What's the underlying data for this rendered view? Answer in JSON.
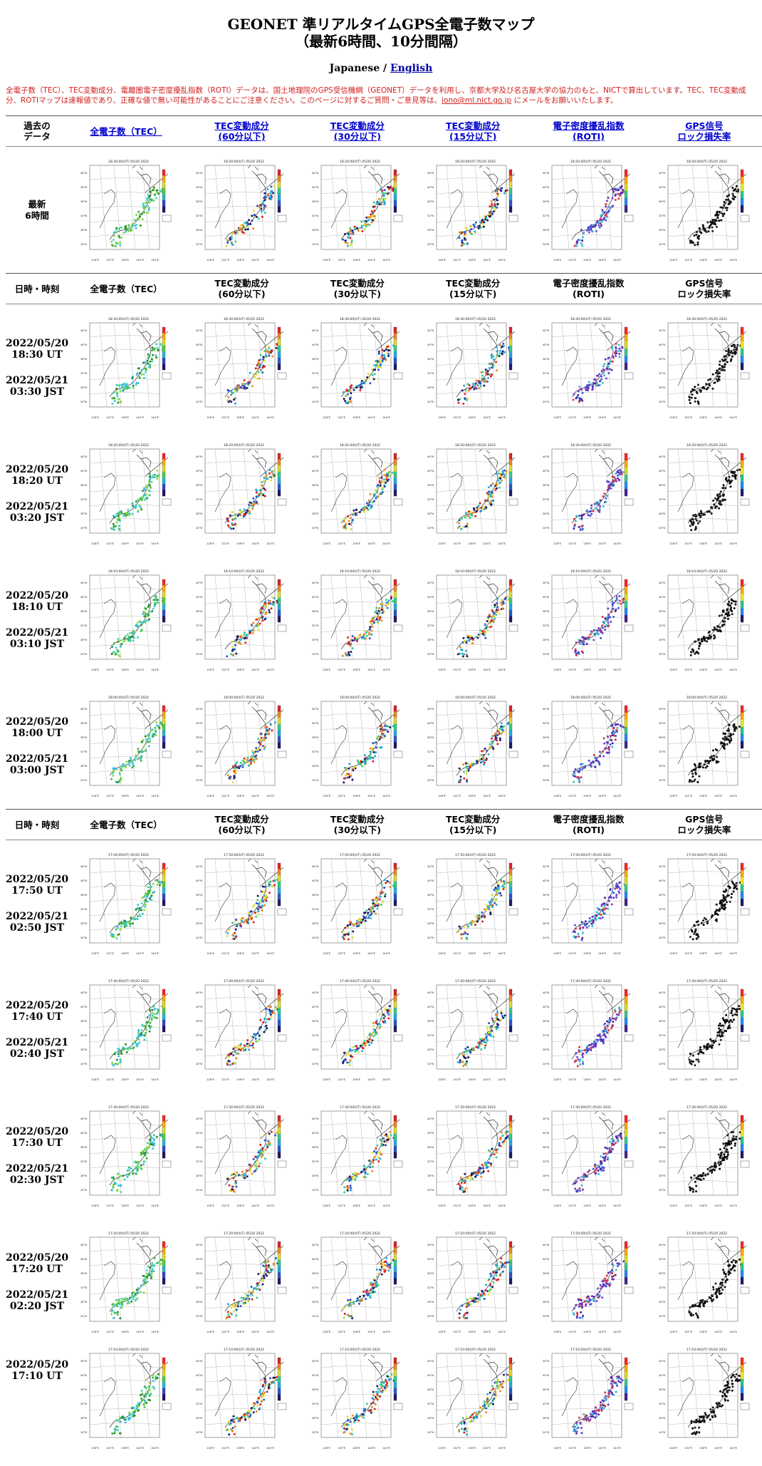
{
  "page": {
    "title_line1": "GEONET 準リアルタイムGPS全電子数マップ",
    "title_line2": "（最新6時間、10分間隔）",
    "lang_current": "Japanese /",
    "lang_english": "English",
    "notice_before_email": "全電子数（TEC）、TEC変動成分、電離圏電子密度擾乱指数（ROTI）データは、国土地理院のGPS受信機網（GEONET）データを利用し、京都大学及び名古屋大学の協力のもと、NICTで算出しています。TEC、TEC変動成分、ROTIマップは速報値であり、正確な値で無い可能性があることにご注意ください。このページに対するご質問・ご意見等は、",
    "notice_email": "iono@ml.nict.go.jp",
    "notice_after_email": " にメールをお願いいたします。"
  },
  "top_header": {
    "c0": "過去の\nデータ",
    "c1": "全電子数（TEC）",
    "c2": "TEC変動成分\n(60分以下)",
    "c3": "TEC変動成分\n(30分以下)",
    "c4": "TEC変動成分\n(15分以下)",
    "c5": "電子密度擾乱指数\n(ROTI)",
    "c6": "GPS信号\nロック損失率"
  },
  "latest_label": "最新\n6時間",
  "section_header": {
    "c0": "日時・時刻",
    "c1": "全電子数（TEC）",
    "c2": "TEC変動成分\n(60分以下)",
    "c3": "TEC変動成分\n(30分以下)",
    "c4": "TEC変動成分\n(15分以下)",
    "c5": "電子密度擾乱指数\n(ROTI)",
    "c6": "GPS信号\nロック損失率"
  },
  "colors": {
    "accent_link": "#0000cc",
    "notice_red": "#d02020",
    "palette_tec": [
      "#2a8a2a",
      "#44bb44",
      "#88dd44",
      "#4fd0c8",
      "#33c0e0"
    ],
    "palette_var": [
      "#1a1a66",
      "#2a55cc",
      "#22aadd",
      "#33cc88",
      "#dddd33",
      "#ee8822",
      "#dd2222"
    ],
    "palette_roti": [
      "#5522aa",
      "#6633bb",
      "#7744cc",
      "#4455dd",
      "#33bbcc",
      "#dd3333"
    ],
    "palette_lock": [
      "#000000",
      "#111111",
      "#222222"
    ]
  },
  "latest_map_times": [
    "18:30:00(UT) 05/20 2022",
    "18:20:00(UT) 05/20 2022",
    "18:20:00(UT) 05/20 2022",
    "18:20:00(UT) 05/20 2022",
    "18:20:00(UT) 05/20 2022",
    "18:20:00(UT) 05/20 2022"
  ],
  "rows": [
    {
      "ut_date": "2022/05/20",
      "ut_time": "18:30 UT",
      "jst_date": "2022/05/21",
      "jst_time": "03:30 JST",
      "map_time": "18:30:00(UT) 05/20 2022"
    },
    {
      "ut_date": "2022/05/20",
      "ut_time": "18:20 UT",
      "jst_date": "2022/05/21",
      "jst_time": "03:20 JST",
      "map_time": "18:20:00(UT) 05/20 2022"
    },
    {
      "ut_date": "2022/05/20",
      "ut_time": "18:10 UT",
      "jst_date": "2022/05/21",
      "jst_time": "03:10 JST",
      "map_time": "18:10:00(UT) 05/20 2022"
    },
    {
      "ut_date": "2022/05/20",
      "ut_time": "18:00 UT",
      "jst_date": "2022/05/21",
      "jst_time": "03:00 JST",
      "map_time": "18:00:00(UT) 05/20 2022"
    },
    {
      "ut_date": "2022/05/20",
      "ut_time": "17:50 UT",
      "jst_date": "2022/05/21",
      "jst_time": "02:50 JST",
      "map_time": "17:50:00(UT) 05/20 2022"
    },
    {
      "ut_date": "2022/05/20",
      "ut_time": "17:40 UT",
      "jst_date": "2022/05/21",
      "jst_time": "02:40 JST",
      "map_time": "17:40:00(UT) 05/20 2022"
    },
    {
      "ut_date": "2022/05/20",
      "ut_time": "17:30 UT",
      "jst_date": "2022/05/21",
      "jst_time": "02:30 JST",
      "map_time": "17:30:00(UT) 05/20 2022"
    },
    {
      "ut_date": "2022/05/20",
      "ut_time": "17:20 UT",
      "jst_date": "2022/05/21",
      "jst_time": "02:20 JST",
      "map_time": "17:20:00(UT) 05/20 2022"
    },
    {
      "ut_date": "2022/05/20",
      "ut_time": "17:10 UT",
      "jst_date": "",
      "jst_time": "",
      "map_time": "17:10:00(UT) 05/20 2022"
    }
  ],
  "map_axis": {
    "lat_labels": [
      "44°N",
      "40°N",
      "36°N",
      "32°N",
      "28°N",
      "24°N"
    ],
    "lon_labels": [
      "128°E",
      "132°E",
      "136°E",
      "140°E",
      "144°E"
    ],
    "station_box": "GEONET\nGNSS\nSTATIONS"
  }
}
